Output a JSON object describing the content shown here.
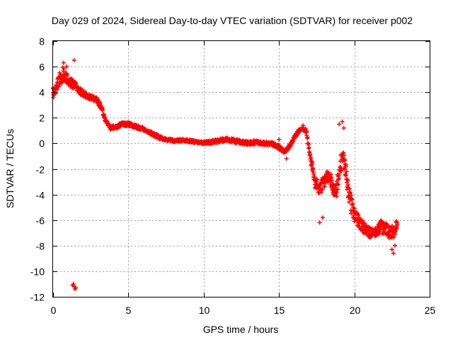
{
  "chart_data": {
    "type": "scatter",
    "title": "Day 029 of 2024, Sidereal Day-to-day VTEC variation (SDTVAR) for receiver p002",
    "xlabel": "GPS time / hours",
    "ylabel": "SDTVAR / TECUs",
    "xlim": [
      0,
      25
    ],
    "ylim": [
      -12,
      8
    ],
    "x_ticks": [
      0,
      5,
      10,
      15,
      20,
      25
    ],
    "y_ticks": [
      -12,
      -10,
      -8,
      -6,
      -4,
      -2,
      0,
      2,
      4,
      6,
      8
    ],
    "grid": true,
    "marker": "+",
    "series": [
      {
        "name": "SDTVAR",
        "color": "#ff0000",
        "bands": [
          {
            "x": [
              0.0,
              0.3,
              0.6,
              0.9,
              1.2,
              1.6,
              2.0,
              2.5,
              2.9,
              3.2,
              3.5,
              3.8,
              4.2,
              4.6,
              5.0,
              5.5,
              6.0,
              6.5,
              7.0,
              7.5,
              8.0,
              8.5,
              9.0,
              9.5,
              10.0,
              10.5,
              11.0,
              11.5,
              12.0,
              12.5,
              13.0,
              13.5,
              14.0,
              14.5,
              15.0,
              15.3,
              15.6,
              15.9,
              16.2,
              16.5,
              16.8,
              17.0,
              17.2,
              17.4,
              17.6,
              17.8,
              18.0,
              18.2,
              18.4,
              18.6,
              18.8,
              19.0,
              19.2,
              19.4,
              19.6,
              19.8,
              20.0,
              20.3,
              20.6,
              20.9,
              21.2,
              21.5,
              21.8,
              22.1,
              22.4,
              22.7,
              22.9
            ],
            "y": [
              4.0,
              4.6,
              5.4,
              5.2,
              4.8,
              4.3,
              3.9,
              3.6,
              3.4,
              2.8,
              1.8,
              1.2,
              1.3,
              1.5,
              1.5,
              1.3,
              1.1,
              0.8,
              0.5,
              0.3,
              0.2,
              0.25,
              0.2,
              0.1,
              0.05,
              0.1,
              0.2,
              0.3,
              0.2,
              0.1,
              0.0,
              0.1,
              0.0,
              0.0,
              -0.3,
              -0.6,
              -0.4,
              0.2,
              0.8,
              1.2,
              1.0,
              -0.5,
              -1.8,
              -3.0,
              -3.6,
              -3.4,
              -3.0,
              -2.6,
              -2.8,
              -3.4,
              -3.6,
              -2.5,
              -1.0,
              -2.0,
              -3.5,
              -4.8,
              -5.6,
              -6.2,
              -6.6,
              -6.9,
              -7.0,
              -6.8,
              -6.5,
              -6.7,
              -7.0,
              -6.8,
              -6.3
            ],
            "spread": [
              0.8,
              1.0,
              1.2,
              1.0,
              0.9,
              0.6,
              0.5,
              0.4,
              0.4,
              0.4,
              0.3,
              0.3,
              0.3,
              0.3,
              0.3,
              0.3,
              0.3,
              0.3,
              0.3,
              0.2,
              0.2,
              0.2,
              0.2,
              0.2,
              0.2,
              0.3,
              0.3,
              0.3,
              0.3,
              0.3,
              0.3,
              0.3,
              0.3,
              0.3,
              0.3,
              0.3,
              0.3,
              0.3,
              0.3,
              0.2,
              0.3,
              0.5,
              0.7,
              0.9,
              1.1,
              1.0,
              1.0,
              1.0,
              1.0,
              1.2,
              1.4,
              1.6,
              1.2,
              1.4,
              1.5,
              1.5,
              1.2,
              1.0,
              0.9,
              0.9,
              0.8,
              0.9,
              1.0,
              1.1,
              1.0,
              1.0,
              0.9
            ]
          }
        ],
        "points": [
          [
            1.35,
            -11.0
          ],
          [
            1.4,
            -11.2
          ],
          [
            1.45,
            -11.4
          ],
          [
            1.3,
            -11.1
          ],
          [
            1.5,
            -11.3
          ],
          [
            1.4,
            6.5
          ],
          [
            0.7,
            6.3
          ],
          [
            0.9,
            6.0
          ],
          [
            19.2,
            1.7
          ],
          [
            19.0,
            1.5
          ],
          [
            19.3,
            1.2
          ],
          [
            22.6,
            -8.6
          ],
          [
            22.5,
            -8.3
          ],
          [
            22.7,
            -8.0
          ],
          [
            16.6,
            1.4
          ],
          [
            17.7,
            -6.2
          ],
          [
            17.9,
            -5.8
          ],
          [
            15.0,
            0.3
          ],
          [
            15.5,
            -1.2
          ],
          [
            14.9,
            -0.4
          ]
        ]
      }
    ]
  }
}
